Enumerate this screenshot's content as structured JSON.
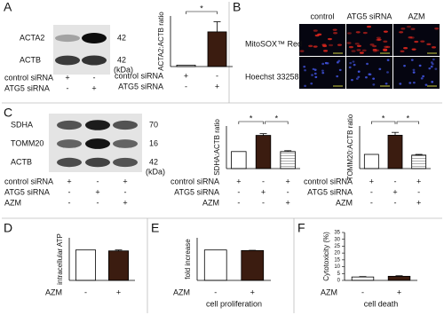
{
  "panels": {
    "letters": [
      "A",
      "B",
      "C",
      "D",
      "E",
      "F"
    ],
    "blot_a": {
      "proteins": [
        "ACTA2",
        "ACTB"
      ],
      "sizes": [
        42,
        42
      ],
      "unit": "(kDa)",
      "conditions": [
        {
          "label": "control siRNA",
          "marks": [
            "+",
            "-"
          ]
        },
        {
          "label": "ATG5 siRNA",
          "marks": [
            "-",
            "+"
          ]
        }
      ]
    },
    "imaging": {
      "columns": [
        "control",
        "ATG5 siRNA",
        "AZM"
      ],
      "rows": [
        "MitoSOX™ Red",
        "Hoechst 33258"
      ]
    },
    "blot_c": {
      "proteins": [
        "SDHA",
        "TOMM20",
        "ACTB"
      ],
      "sizes": [
        70,
        16,
        42
      ],
      "unit": "(kDa)",
      "conditions": [
        {
          "label": "control siRNA",
          "marks": [
            "+",
            "-",
            "+"
          ]
        },
        {
          "label": "ATG5 siRNA",
          "marks": [
            "-",
            "+",
            "-"
          ]
        },
        {
          "label": "AZM",
          "marks": [
            "-",
            "-",
            "+"
          ]
        }
      ]
    }
  },
  "chart_data": [
    {
      "type": "bar",
      "ylabel": "ACTA2:ACTB ratio",
      "values": [
        1,
        24
      ],
      "errors": [
        0,
        7
      ],
      "ylim": [
        0,
        35
      ],
      "colors": [
        "#ffffff",
        "#3b1c10"
      ],
      "hatched": [
        false,
        false
      ],
      "conditions": [
        {
          "label": "control siRNA",
          "marks": [
            "+",
            "-"
          ]
        },
        {
          "label": "ATG5 siRNA",
          "marks": [
            "-",
            "+"
          ]
        }
      ],
      "significance": [
        {
          "between": [
            0,
            1
          ],
          "label": "*"
        }
      ]
    },
    {
      "type": "bar",
      "ylabel": "SDHA:ACTB ratio",
      "values": [
        1,
        1.95,
        1.0
      ],
      "errors": [
        0,
        0.1,
        0.05
      ],
      "ylim": [
        0,
        2.5
      ],
      "colors": [
        "#ffffff",
        "#3b1c10",
        "#ffffff"
      ],
      "hatched": [
        false,
        false,
        true
      ],
      "conditions": [
        {
          "label": "control siRNA",
          "marks": [
            "+",
            "-",
            "+"
          ]
        },
        {
          "label": "ATG5 siRNA",
          "marks": [
            "-",
            "+",
            "-"
          ]
        },
        {
          "label": "AZM",
          "marks": [
            "-",
            "-",
            "+"
          ]
        }
      ],
      "significance": [
        {
          "between": [
            0,
            1
          ],
          "label": "*"
        },
        {
          "between": [
            1,
            2
          ],
          "label": "*"
        }
      ]
    },
    {
      "type": "bar",
      "ylabel": "TOMM20:ACTB ratio",
      "values": [
        1,
        2.35,
        0.95
      ],
      "errors": [
        0,
        0.2,
        0.05
      ],
      "ylim": [
        0,
        3
      ],
      "colors": [
        "#ffffff",
        "#3b1c10",
        "#ffffff"
      ],
      "hatched": [
        false,
        false,
        true
      ],
      "conditions": [
        {
          "label": "control siRNA",
          "marks": [
            "+",
            "-",
            "+"
          ]
        },
        {
          "label": "ATG5 siRNA",
          "marks": [
            "-",
            "+",
            "-"
          ]
        },
        {
          "label": "AZM",
          "marks": [
            "-",
            "-",
            "+"
          ]
        }
      ],
      "significance": [
        {
          "between": [
            0,
            1
          ],
          "label": "*"
        },
        {
          "between": [
            1,
            2
          ],
          "label": "*"
        }
      ]
    },
    {
      "type": "bar",
      "ylabel": "intracellular ATP",
      "values": [
        1,
        0.97
      ],
      "errors": [
        0,
        0.03
      ],
      "ylim": [
        0,
        1.4
      ],
      "colors": [
        "#ffffff",
        "#3b1c10"
      ],
      "hatched": [
        false,
        false
      ],
      "conditions": [
        {
          "label": "AZM",
          "marks": [
            "-",
            "+"
          ]
        }
      ]
    },
    {
      "type": "bar",
      "ylabel": "fold increase",
      "xlabel": "cell proliferation",
      "values": [
        1,
        0.98
      ],
      "errors": [
        0,
        0.01
      ],
      "ylim": [
        0,
        1.4
      ],
      "colors": [
        "#ffffff",
        "#3b1c10"
      ],
      "hatched": [
        false,
        false
      ],
      "conditions": [
        {
          "label": "AZM",
          "marks": [
            "-",
            "+"
          ]
        }
      ]
    },
    {
      "type": "bar",
      "ylabel": "Cytotoxicity (%)",
      "xlabel": "cell death",
      "values": [
        2.5,
        3
      ],
      "errors": [
        0.3,
        0.4
      ],
      "ylim": [
        0,
        35
      ],
      "yticks": [
        0,
        5,
        10,
        15,
        20,
        25,
        30,
        35
      ],
      "colors": [
        "#ffffff",
        "#3b1c10"
      ],
      "hatched": [
        false,
        false
      ],
      "conditions": [
        {
          "label": "AZM",
          "marks": [
            "-",
            "+"
          ]
        }
      ]
    }
  ]
}
